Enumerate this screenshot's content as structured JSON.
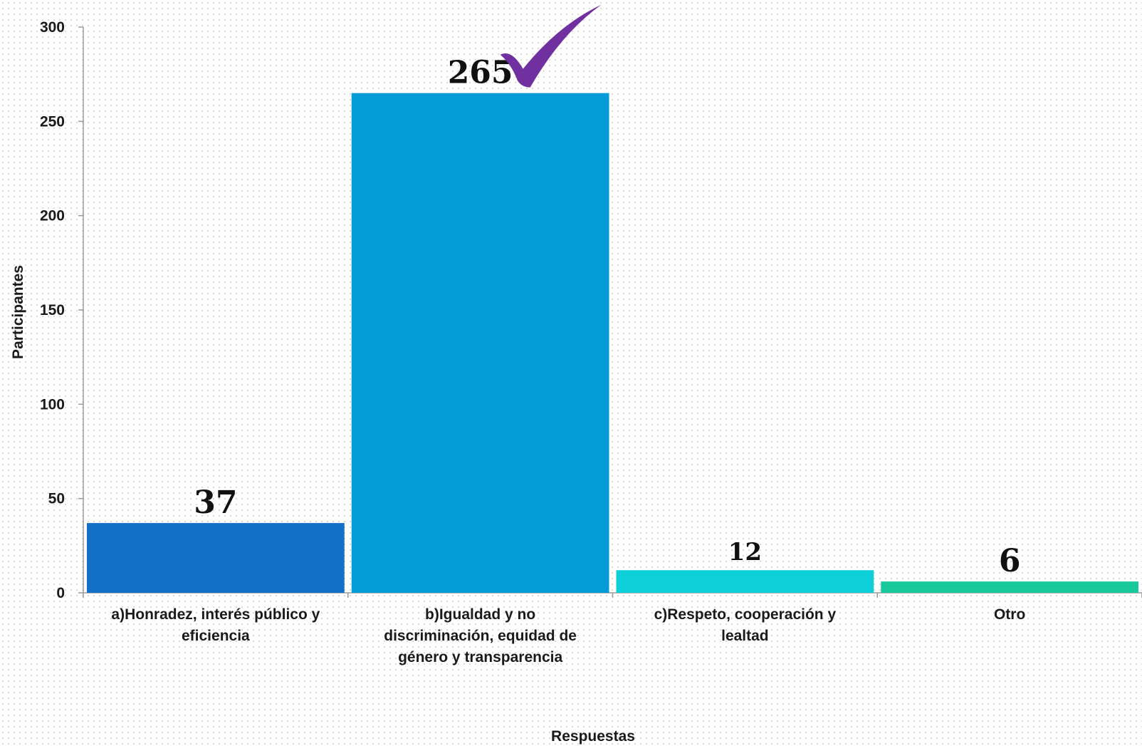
{
  "chart_data": {
    "type": "bar",
    "categories": [
      [
        "a)Honradez, interés público y",
        "eficiencia"
      ],
      [
        "b)Igualdad y no",
        "discriminación, equidad de",
        "género y transparencia"
      ],
      [
        "c)Respeto, cooperación y",
        "lealtad"
      ],
      [
        "Otro"
      ]
    ],
    "values": [
      37,
      265,
      12,
      6
    ],
    "data_labels": [
      "37",
      "265",
      "12",
      "6"
    ],
    "colors": [
      "#146fc6",
      "#049cd8",
      "#0ccfd8",
      "#17c99b"
    ],
    "xlabel": "Respuestas",
    "ylabel": "Participantes",
    "ylim": [
      0,
      300
    ],
    "yticks": [
      0,
      50,
      100,
      150,
      200,
      250,
      300
    ],
    "highlight": {
      "category_index": 1,
      "icon": "checkmark-icon",
      "color": "#7030a0"
    },
    "grid": false,
    "legend": "none"
  }
}
